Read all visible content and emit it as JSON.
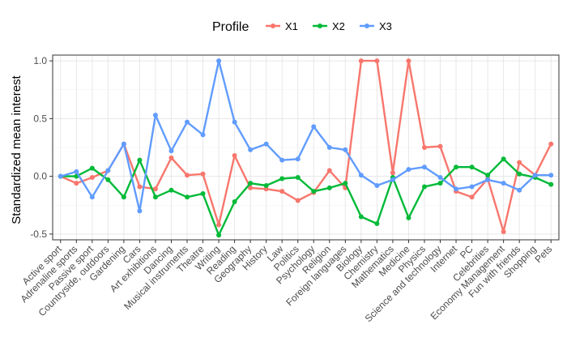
{
  "chart_data": {
    "type": "line",
    "title": "",
    "xlabel": "",
    "ylabel": "Standardized mean interest",
    "ylim": [
      -0.55,
      1.05
    ],
    "yticks": [
      -0.5,
      0.0,
      0.5,
      1.0
    ],
    "ytick_labels": [
      "-0.5",
      "0.0",
      "0.5",
      "1.0"
    ],
    "grid": true,
    "legend": {
      "title": "Profile",
      "position": "top"
    },
    "categories": [
      "Active sport",
      "Adrenaline sports",
      "Passive sport",
      "Countryside, outdoors",
      "Gardening",
      "Cars",
      "Art exhibitions",
      "Dancing",
      "Musical instruments",
      "Theatre",
      "Writing",
      "Reading",
      "Geography",
      "History",
      "Law",
      "Politics",
      "Psychology",
      "Religion",
      "Foreign languages",
      "Biology",
      "Chemistry",
      "Mathematics",
      "Medicine",
      "Physics",
      "Science and technology",
      "Internet",
      "PC",
      "Celebrities",
      "Economy Management",
      "Fun with friends",
      "Shopping",
      "Pets"
    ],
    "series": [
      {
        "name": "X1",
        "color": "#F8766D",
        "values": [
          0.0,
          -0.06,
          -0.01,
          0.05,
          0.28,
          -0.09,
          -0.11,
          0.16,
          0.01,
          0.02,
          -0.42,
          0.18,
          -0.1,
          -0.11,
          -0.13,
          -0.21,
          -0.14,
          0.05,
          -0.1,
          1.0,
          1.0,
          0.03,
          1.0,
          0.25,
          0.26,
          -0.13,
          -0.18,
          -0.02,
          -0.48,
          0.12,
          0.01,
          0.28
        ]
      },
      {
        "name": "X2",
        "color": "#00BA38",
        "values": [
          0.0,
          0.0,
          0.07,
          -0.03,
          -0.18,
          0.14,
          -0.18,
          -0.12,
          -0.18,
          -0.15,
          -0.51,
          -0.22,
          -0.06,
          -0.08,
          -0.02,
          -0.01,
          -0.13,
          -0.1,
          -0.06,
          -0.35,
          -0.41,
          -0.01,
          -0.36,
          -0.09,
          -0.06,
          0.08,
          0.08,
          0.01,
          0.15,
          0.02,
          -0.01,
          -0.07
        ]
      },
      {
        "name": "X3",
        "color": "#619CFF",
        "values": [
          0.0,
          0.04,
          -0.18,
          0.05,
          0.28,
          -0.3,
          0.53,
          0.22,
          0.47,
          0.36,
          1.0,
          0.47,
          0.23,
          0.28,
          0.14,
          0.15,
          0.43,
          0.25,
          0.23,
          0.01,
          -0.08,
          -0.03,
          0.06,
          0.08,
          -0.01,
          -0.11,
          -0.09,
          -0.03,
          -0.06,
          -0.12,
          0.01,
          0.01
        ]
      }
    ]
  }
}
